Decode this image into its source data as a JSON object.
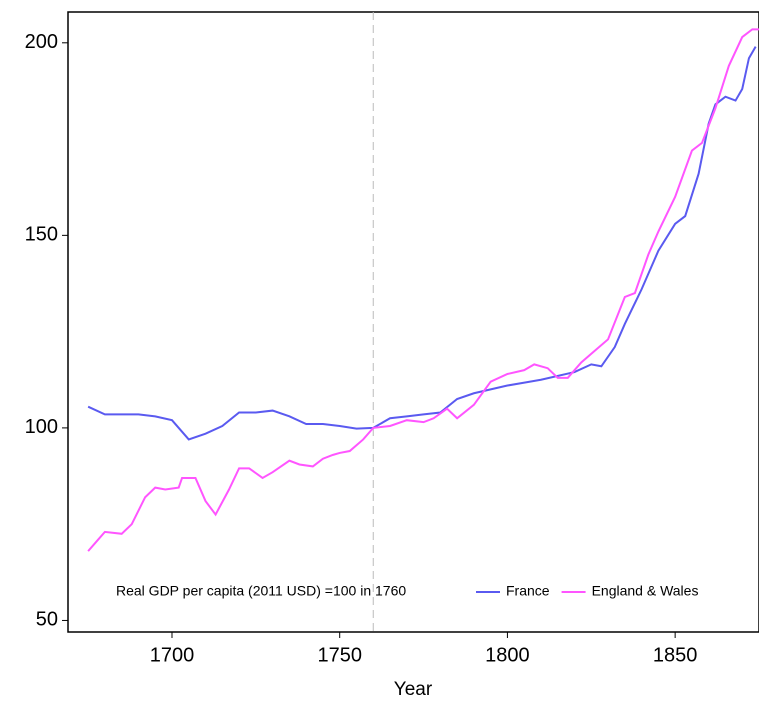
{
  "chart_data": {
    "type": "line",
    "x_label": "Year",
    "legend_title": "Real GDP per capita (2011 USD) =100 in 1760",
    "reference_x": 1760,
    "xlim": [
      1669,
      1875
    ],
    "xticks": [
      1700,
      1750,
      1800,
      1850
    ],
    "ylim": [
      47,
      208
    ],
    "yticks": [
      50,
      100,
      150,
      200
    ],
    "series": [
      {
        "name": "France",
        "color": "#5a5af0",
        "x": [
          1675,
          1680,
          1685,
          1690,
          1695,
          1700,
          1705,
          1710,
          1715,
          1720,
          1725,
          1730,
          1735,
          1740,
          1745,
          1750,
          1755,
          1760,
          1765,
          1770,
          1775,
          1780,
          1785,
          1790,
          1795,
          1800,
          1810,
          1820,
          1825,
          1828,
          1832,
          1835,
          1840,
          1845,
          1850,
          1853,
          1857,
          1860,
          1862,
          1865,
          1868,
          1870,
          1872,
          1874
        ],
        "values": [
          105.5,
          103.5,
          103.5,
          103.5,
          103,
          102,
          97,
          98.5,
          100.5,
          104,
          104,
          104.5,
          103,
          101,
          101,
          100.5,
          99.8,
          100,
          102.5,
          103,
          103.5,
          104,
          107.5,
          109,
          110,
          111,
          112.5,
          114.5,
          116.5,
          116,
          121,
          127,
          136,
          146,
          153,
          155,
          166,
          179,
          184,
          186,
          185,
          188,
          196,
          199
        ]
      },
      {
        "name": "England & Wales",
        "color": "#ff55ff",
        "x": [
          1675,
          1678,
          1680,
          1685,
          1688,
          1692,
          1695,
          1698,
          1702,
          1703,
          1707,
          1710,
          1713,
          1717,
          1720,
          1723,
          1727,
          1730,
          1735,
          1738,
          1742,
          1745,
          1748,
          1750,
          1753,
          1757,
          1760,
          1765,
          1770,
          1775,
          1778,
          1782,
          1785,
          1790,
          1795,
          1800,
          1805,
          1808,
          1812,
          1815,
          1818,
          1822,
          1826,
          1830,
          1835,
          1838,
          1842,
          1845,
          1850,
          1855,
          1858,
          1862,
          1866,
          1870,
          1873,
          1875
        ],
        "values": [
          68,
          71,
          73,
          72.5,
          75,
          82,
          84.5,
          84,
          84.5,
          87,
          87,
          81,
          77.5,
          84,
          89.5,
          89.5,
          87,
          88.5,
          91.5,
          90.5,
          90,
          92,
          93,
          93.5,
          94,
          97,
          100,
          100.5,
          102,
          101.5,
          102.5,
          105,
          102.5,
          106,
          112,
          114,
          115,
          116.5,
          115.5,
          113,
          113,
          117,
          120,
          123,
          134,
          135,
          145,
          151,
          160,
          172,
          174,
          183,
          194,
          201.5,
          203.5,
          203.5
        ]
      }
    ]
  }
}
